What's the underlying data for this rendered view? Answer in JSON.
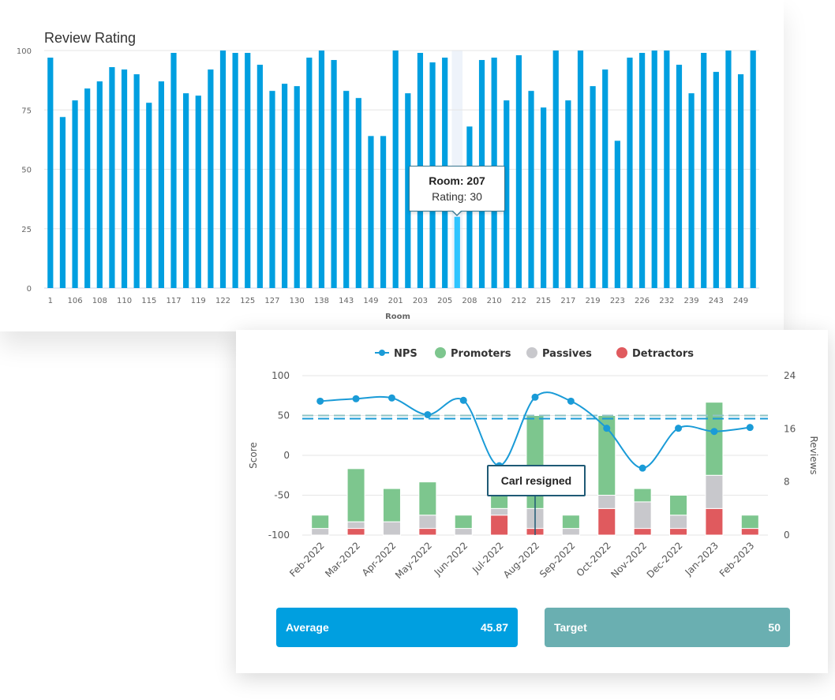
{
  "chart_data": [
    {
      "type": "bar",
      "title": "Review Rating",
      "xlabel": "Room",
      "ylabel": "",
      "ylim": [
        0,
        100
      ],
      "yticks": [
        0,
        25,
        50,
        75,
        100
      ],
      "x_tick_labels": [
        "1",
        "106",
        "108",
        "110",
        "115",
        "117",
        "119",
        "122",
        "125",
        "127",
        "130",
        "138",
        "143",
        "149",
        "201",
        "203",
        "205",
        "208",
        "210",
        "212",
        "215",
        "217",
        "219",
        "223",
        "226",
        "232",
        "239",
        "243",
        "249"
      ],
      "values": [
        97,
        72,
        79,
        84,
        87,
        93,
        92,
        90,
        78,
        87,
        99,
        82,
        81,
        92,
        100,
        99,
        99,
        94,
        83,
        86,
        85,
        97,
        100,
        96,
        83,
        80,
        64,
        64,
        100,
        82,
        99,
        95,
        97,
        30,
        68,
        96,
        97,
        79,
        98,
        83,
        76,
        100,
        79,
        100,
        85,
        92,
        62,
        97,
        99,
        100,
        100,
        94,
        82,
        99,
        91,
        100,
        90,
        100
      ],
      "highlight_index": 33,
      "tooltip": {
        "title": "Room: 207",
        "label": "Rating: 30"
      },
      "bar_color": "#009fe0",
      "highlight_color": "#2ec4ff"
    },
    {
      "type": "bar",
      "title": "",
      "legend_position": "top",
      "categories": [
        "Feb-2022",
        "Mar-2022",
        "Apr-2022",
        "May-2022",
        "Jun-2022",
        "Jul-2022",
        "Aug-2022",
        "Sep-2022",
        "Oct-2022",
        "Nov-2022",
        "Dec-2022",
        "Jan-2023",
        "Feb-2023"
      ],
      "y_left": {
        "label": "Score",
        "ticks": [
          -100,
          -50,
          0,
          50,
          100
        ],
        "range": [
          -100,
          100
        ]
      },
      "y_right": {
        "label": "Reviews",
        "ticks": [
          0,
          8,
          16,
          24
        ],
        "range": [
          0,
          24
        ]
      },
      "series": [
        {
          "name": "NPS",
          "kind": "line",
          "axis": "left",
          "color": "#1a9bd7",
          "values": [
            68,
            71,
            72,
            51,
            69,
            -13,
            73,
            68,
            34,
            -16,
            34,
            30,
            35
          ]
        },
        {
          "name": "Promoters",
          "kind": "stacked-bar",
          "axis": "right",
          "color": "#7dc68e",
          "values": [
            2,
            8,
            5,
            5,
            2,
            2,
            14,
            2,
            12,
            2,
            3,
            11,
            2
          ]
        },
        {
          "name": "Passives",
          "kind": "stacked-bar",
          "axis": "right",
          "color": "#c8c8cc",
          "values": [
            1,
            1,
            2,
            2,
            1,
            1,
            3,
            1,
            2,
            4,
            2,
            5,
            0
          ]
        },
        {
          "name": "Detractors",
          "kind": "stacked-bar",
          "axis": "right",
          "color": "#e05a5e",
          "values": [
            0,
            1,
            0,
            1,
            0,
            3,
            1,
            0,
            4,
            1,
            1,
            4,
            1
          ]
        }
      ],
      "reference_lines": [
        {
          "value": 50,
          "color": "#8ec3c4"
        },
        {
          "value": 46,
          "color": "#1a9bd7"
        }
      ],
      "annotation": {
        "text": "Carl resigned",
        "category": "Aug-2022"
      }
    }
  ],
  "stats": {
    "average": {
      "label": "Average",
      "value": "45.87",
      "color": "#009fe0"
    },
    "target": {
      "label": "Target",
      "value": "50",
      "color": "#6aafb1"
    }
  }
}
